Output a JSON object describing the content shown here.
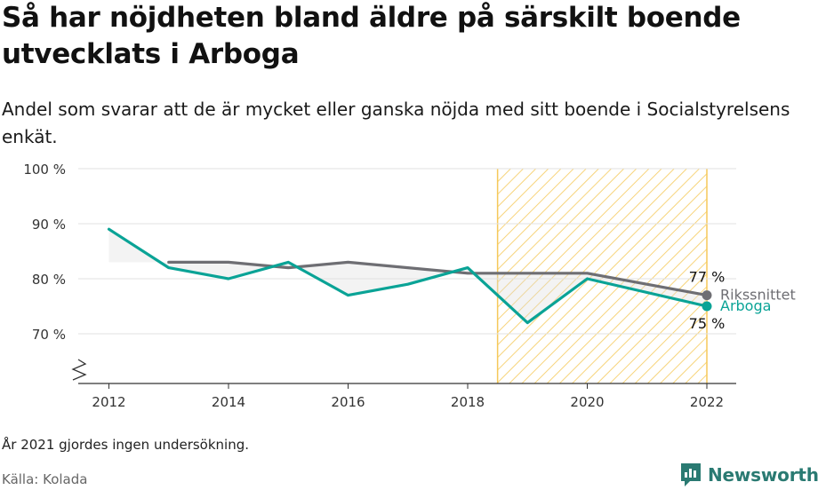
{
  "header": {
    "title": "Så har nöjdheten bland äldre på särskilt boende utvecklats i Arboga",
    "subtitle": "Andel som svarar att de är mycket eller ganska nöjda med sitt boende i Socialstyrelsens enkät."
  },
  "footer": {
    "note": "År 2021 gjordes ingen undersökning.",
    "source": "Källa: Kolada",
    "brand": "Newsworthy"
  },
  "colors": {
    "arboga": "#0aa396",
    "riket": "#6e6e73",
    "highlight": "#f5c95a",
    "grid": "#e2e2e2"
  },
  "chart_data": {
    "type": "line",
    "x": [
      2012,
      2013,
      2014,
      2015,
      2016,
      2017,
      2018,
      2019,
      2020,
      2022
    ],
    "series": [
      {
        "name": "Arboga",
        "values": [
          89,
          82,
          80,
          83,
          77,
          79,
          82,
          72,
          80,
          75
        ]
      },
      {
        "name": "Rikssnittet",
        "values": [
          null,
          83,
          83,
          82,
          83,
          82,
          81,
          81,
          81,
          77
        ]
      }
    ],
    "end_labels": {
      "Rikssnittet": "77 %",
      "Arboga": "75 %"
    },
    "y_ticks": [
      "100 %",
      "90 %",
      "80 %",
      "70 %"
    ],
    "y_tick_values": [
      100,
      90,
      80,
      70
    ],
    "x_ticks": [
      "2012",
      "2014",
      "2016",
      "2018",
      "2020",
      "2022"
    ],
    "x_tick_values": [
      2012,
      2014,
      2016,
      2018,
      2020,
      2022
    ],
    "ylim": [
      70,
      100
    ],
    "y_axis_break": true,
    "highlight_period": [
      2018.5,
      2022
    ],
    "grid": true
  }
}
